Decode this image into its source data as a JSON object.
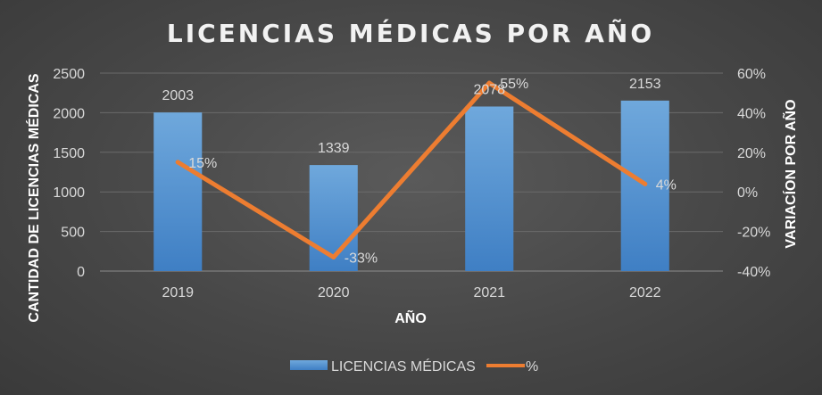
{
  "chart_data": {
    "type": "bar",
    "title": "LICENCIAS MÉDICAS POR AÑO",
    "xlabel": "AÑO",
    "ylabel": "CANTIDAD DE LICENCIAS MÉDICAS",
    "y2label": "VARIACÍON POR AÑO",
    "categories": [
      "2019",
      "2020",
      "2021",
      "2022"
    ],
    "ylim": [
      0,
      2500
    ],
    "yticks": [
      "0",
      "500",
      "1000",
      "1500",
      "2000",
      "2500"
    ],
    "y2lim": [
      -40,
      60
    ],
    "y2ticks": [
      "-40%",
      "-20%",
      "0%",
      "20%",
      "40%",
      "60%"
    ],
    "grid": true,
    "legend_position": "bottom",
    "series": [
      {
        "name": "LICENCIAS MÉDICAS",
        "type": "bar",
        "axis": "left",
        "color": "#5b9bd5",
        "values": [
          2003,
          1339,
          2078,
          2153
        ],
        "labels": [
          "2003",
          "1339",
          "2078",
          "2153"
        ]
      },
      {
        "name": "%",
        "type": "line",
        "axis": "right",
        "color": "#ed7d31",
        "values": [
          15,
          -33,
          55,
          4
        ],
        "labels": [
          "15%",
          "-33%",
          "55%",
          "4%"
        ]
      }
    ]
  }
}
